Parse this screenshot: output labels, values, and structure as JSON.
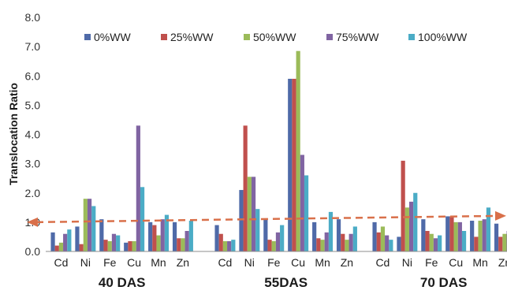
{
  "chart_data": {
    "type": "bar",
    "ylabel": "Translocation Ratio",
    "ylim": [
      0,
      8
    ],
    "yticks": [
      "0.0",
      "1.0",
      "2.0",
      "3.0",
      "4.0",
      "5.0",
      "6.0",
      "7.0",
      "8.0"
    ],
    "groups": [
      {
        "label": "40 DAS",
        "categories": [
          "Cd",
          "Ni",
          "Fe",
          "Cu",
          "Mn",
          "Zn"
        ]
      },
      {
        "label": "55DAS",
        "categories": [
          "Cd",
          "Ni",
          "Fe",
          "Cu",
          "Mn",
          "Zn"
        ]
      },
      {
        "label": "70 DAS",
        "categories": [
          "Cd",
          "Ni",
          "Fe",
          "Cu",
          "Mn",
          "Zn"
        ]
      }
    ],
    "series": [
      {
        "name": "0%WW",
        "color": "#4f6aa8",
        "values": [
          0.65,
          0.85,
          1.1,
          0.3,
          1.0,
          1.0,
          0.9,
          2.1,
          1.1,
          5.9,
          1.0,
          1.1,
          1.0,
          0.5,
          1.1,
          1.2,
          1.05,
          0.95
        ]
      },
      {
        "name": "25%WW",
        "color": "#c0504d",
        "values": [
          0.2,
          0.25,
          0.4,
          0.35,
          0.9,
          0.45,
          0.6,
          4.3,
          0.4,
          5.9,
          0.45,
          0.6,
          0.65,
          3.1,
          0.7,
          1.2,
          0.5,
          0.5
        ]
      },
      {
        "name": "50%WW",
        "color": "#9bbb59",
        "values": [
          0.3,
          1.8,
          0.35,
          0.35,
          0.55,
          0.45,
          0.35,
          2.55,
          0.35,
          6.85,
          0.4,
          0.4,
          0.85,
          1.5,
          0.6,
          1.0,
          1.05,
          0.6
        ]
      },
      {
        "name": "75%WW",
        "color": "#8064a2",
        "values": [
          0.6,
          1.8,
          0.6,
          4.3,
          1.1,
          0.7,
          0.35,
          2.55,
          0.65,
          3.3,
          0.65,
          0.6,
          0.55,
          1.7,
          0.45,
          1.0,
          1.1,
          0.7
        ]
      },
      {
        "name": "100%WW",
        "color": "#4bacc6",
        "values": [
          0.75,
          1.55,
          0.55,
          2.2,
          1.25,
          1.05,
          0.4,
          1.45,
          0.9,
          2.6,
          1.35,
          0.85,
          0.4,
          2.0,
          0.55,
          0.7,
          1.5,
          1.1
        ]
      }
    ],
    "reference_line": {
      "value": 1.0,
      "style": "dashed",
      "color": "#d9704a",
      "arrowheads": "both"
    },
    "legend_position": "top",
    "grid": false
  }
}
